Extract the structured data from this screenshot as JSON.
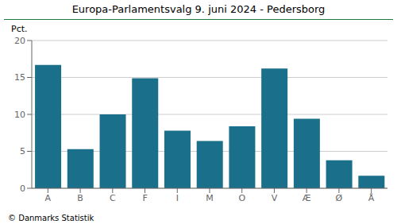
{
  "chart_data": {
    "type": "bar",
    "title": "Europa-Parlamentsvalg 9. juni 2024 - Pedersborg",
    "categories": [
      "A",
      "B",
      "C",
      "F",
      "I",
      "M",
      "O",
      "V",
      "Æ",
      "Ø",
      "Å"
    ],
    "values": [
      16.7,
      5.3,
      10.0,
      14.9,
      7.8,
      6.4,
      8.4,
      16.2,
      9.4,
      3.8,
      1.7
    ],
    "color": "#1a6f8a",
    "ylabel": "Pct.",
    "ylim": [
      0,
      20
    ],
    "yticks": [
      0,
      5,
      10,
      15,
      20
    ],
    "grid": true,
    "annotations": [
      "© Danmarks Statistik"
    ]
  }
}
